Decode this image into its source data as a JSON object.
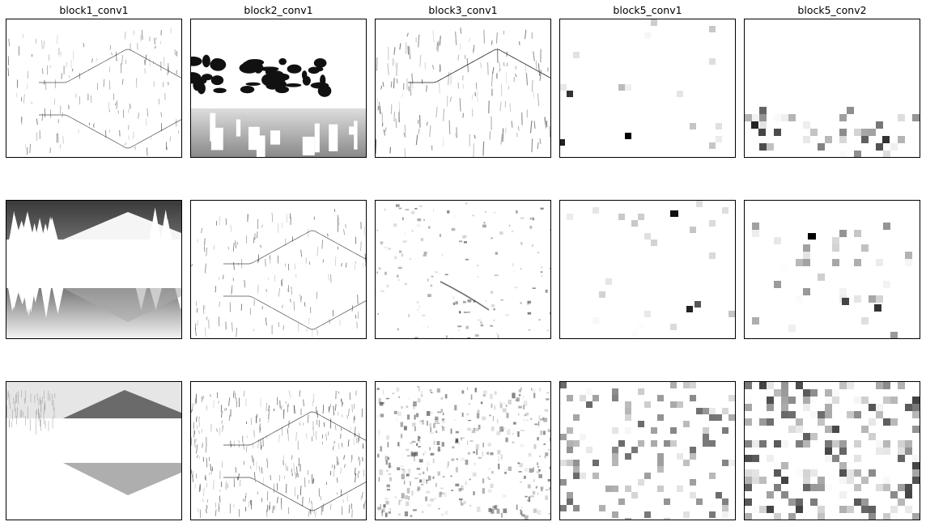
{
  "columns": [
    {
      "title": "block1_conv1"
    },
    {
      "title": "block2_conv1"
    },
    {
      "title": "block3_conv1"
    },
    {
      "title": "block5_conv1"
    },
    {
      "title": "block5_conv2"
    }
  ],
  "rows": [
    {
      "panels": [
        {
          "name": "feature-map-r1-block1_conv1",
          "style": "edges-light"
        },
        {
          "name": "feature-map-r1-block2_conv1",
          "style": "dark-treeline-gradient"
        },
        {
          "name": "feature-map-r1-block3_conv1",
          "style": "texture-vertical"
        },
        {
          "name": "feature-map-r1-block5_conv1",
          "style": "sparse-blocks"
        },
        {
          "name": "feature-map-r1-block5_conv2",
          "style": "bottom-blocks"
        }
      ]
    },
    {
      "panels": [
        {
          "name": "feature-map-r2-block1_conv1",
          "style": "dark-sky-mountain"
        },
        {
          "name": "feature-map-r2-block2_conv1",
          "style": "edges-light"
        },
        {
          "name": "feature-map-r2-block3_conv1",
          "style": "texture-sparse"
        },
        {
          "name": "feature-map-r2-block5_conv1",
          "style": "sparse-blocks-2"
        },
        {
          "name": "feature-map-r2-block5_conv2",
          "style": "mid-blocks"
        }
      ]
    },
    {
      "panels": [
        {
          "name": "feature-map-r3-block1_conv1",
          "style": "mountain-gray"
        },
        {
          "name": "feature-map-r3-block2_conv1",
          "style": "edges-dense"
        },
        {
          "name": "feature-map-r3-block3_conv1",
          "style": "texture-dense"
        },
        {
          "name": "feature-map-r3-block5_conv1",
          "style": "scattered-blocks"
        },
        {
          "name": "feature-map-r3-block5_conv2",
          "style": "dense-blocks"
        }
      ]
    }
  ]
}
